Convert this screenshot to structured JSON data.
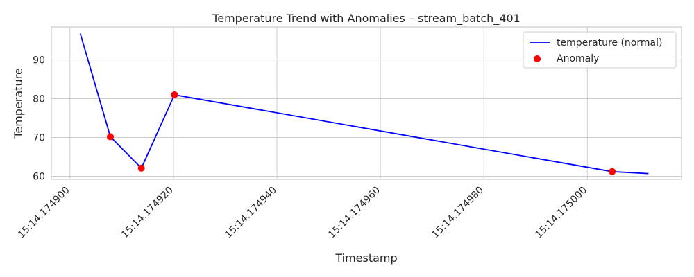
{
  "chart_data": {
    "type": "line",
    "title": "Temperature Trend with Anomalies – stream_batch_401",
    "xlabel": "Timestamp",
    "ylabel": "Temperature",
    "xlim": [
      174896.4,
      175018.2
    ],
    "ylim": [
      59.2,
      98.5
    ],
    "x_ticks": [
      {
        "value": 174900,
        "label": "15:14.174900"
      },
      {
        "value": 174920,
        "label": "15:14.174920"
      },
      {
        "value": 174940,
        "label": "15:14.174940"
      },
      {
        "value": 174960,
        "label": "15:14.174960"
      },
      {
        "value": 174980,
        "label": "15:14.174980"
      },
      {
        "value": 175000,
        "label": "15:14.175000"
      }
    ],
    "y_ticks": [
      60,
      70,
      80,
      90
    ],
    "grid": true,
    "legend_position": "top-right",
    "series": [
      {
        "name": "temperature (normal)",
        "type": "line",
        "color": "#0000ff",
        "x": [
          174902,
          174907.8,
          174913.8,
          174920.2,
          175004.8,
          175011.8
        ],
        "y": [
          96.8,
          70.2,
          62.1,
          81.0,
          61.2,
          60.7
        ]
      },
      {
        "name": "Anomaly",
        "type": "scatter",
        "color": "#ff0000",
        "x": [
          174907.8,
          174913.8,
          174920.2,
          175004.8
        ],
        "y": [
          70.2,
          62.1,
          81.0,
          61.2
        ]
      }
    ]
  }
}
